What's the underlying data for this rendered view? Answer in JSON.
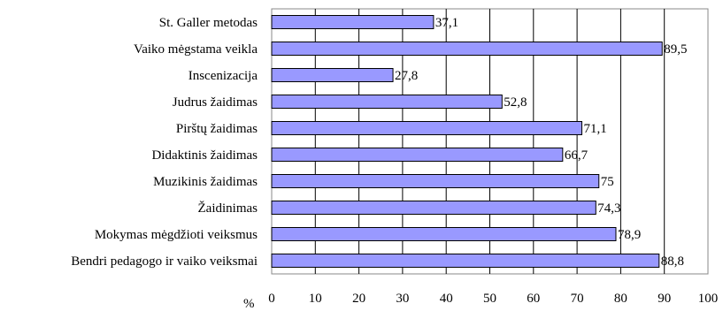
{
  "chart_data": {
    "type": "bar",
    "orientation": "horizontal",
    "categories": [
      "St. Galler metodas",
      "Vaiko mėgstama veikla",
      "Inscenizacija",
      "Judrus žaidimas",
      "Pirštų žaidimas",
      "Didaktinis žaidimas",
      "Muzikinis žaidimas",
      "Žaidinimas",
      "Mokymas mėgdžioti veiksmus",
      "Bendri pedagogo ir vaiko veiksmai"
    ],
    "values": [
      37.1,
      89.5,
      27.8,
      52.8,
      71.1,
      66.7,
      75,
      74.3,
      78.9,
      88.8
    ],
    "value_labels": [
      "37,1",
      "89,5",
      "27,8",
      "52,8",
      "71,1",
      "66,7",
      "75",
      "74,3",
      "78,9",
      "88,8"
    ],
    "xlim": [
      0,
      100
    ],
    "xticks": [
      "0",
      "10",
      "20",
      "30",
      "40",
      "50",
      "60",
      "70",
      "80",
      "90",
      "100"
    ],
    "xlabel": "%",
    "grid": "vertical",
    "bar_color": "#9999ff"
  }
}
